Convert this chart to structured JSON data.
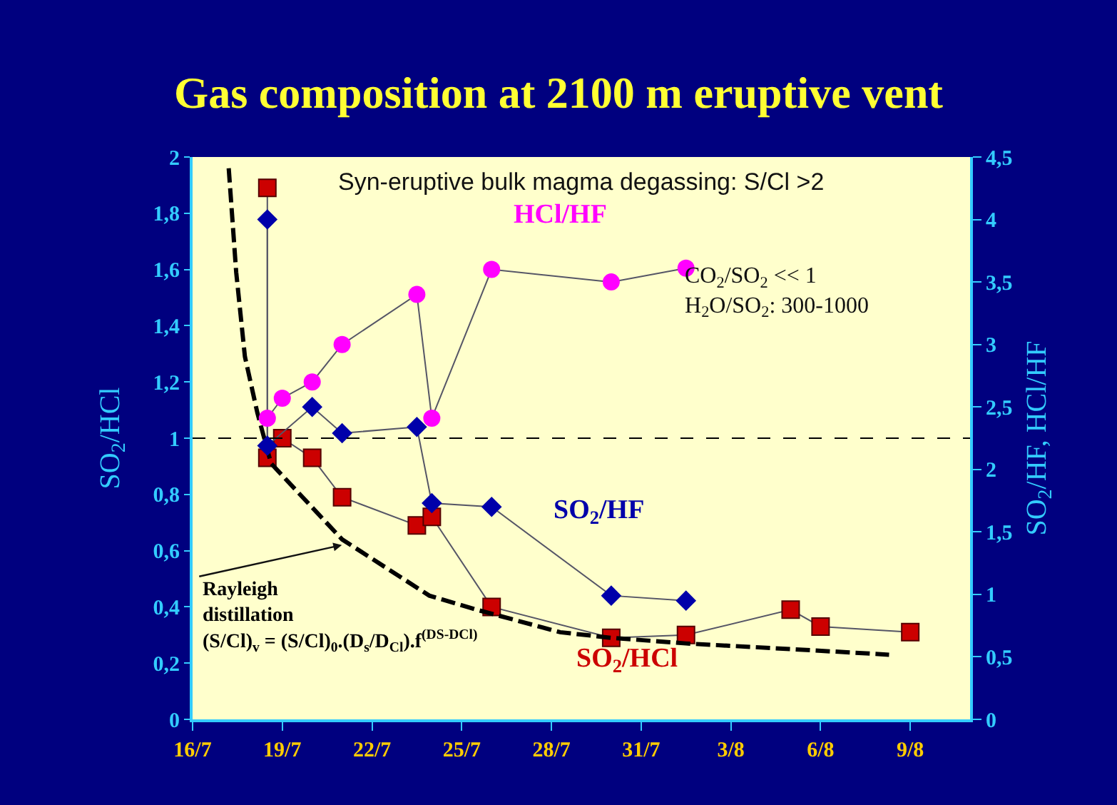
{
  "chart_data": {
    "type": "line",
    "title": "Gas composition at 2100 m eruptive vent",
    "ylabel": "SO$_{2}$/HCl",
    "y2label": "SO$_{2}$/HF, HCl/HF",
    "xlim": [
      "--07-16",
      "--08-11"
    ],
    "xticks": [
      {
        "value": "--07-16",
        "label": "16/7"
      },
      {
        "value": "--07-19",
        "label": "19/7"
      },
      {
        "value": "--07-22",
        "label": "22/7"
      },
      {
        "value": "--07-25",
        "label": "25/7"
      },
      {
        "value": "--07-28",
        "label": "28/7"
      },
      {
        "value": "--07-31",
        "label": "31/7"
      },
      {
        "value": "--08-03",
        "label": "3/8"
      },
      {
        "value": "--08-06",
        "label": "6/8"
      },
      {
        "value": "--08-09",
        "label": "9/8"
      }
    ],
    "ylim": [
      0,
      2
    ],
    "yticks": [
      0,
      {
        "value": 0.2,
        "label": "0,2"
      },
      {
        "value": 0.4,
        "label": "0,4"
      },
      {
        "value": 0.6,
        "label": "0,6"
      },
      {
        "value": 0.8,
        "label": "0,8"
      },
      1,
      {
        "value": 1.2,
        "label": "1,2"
      },
      {
        "value": 1.4,
        "label": "1,4"
      },
      {
        "value": 1.6,
        "label": "1,6"
      },
      {
        "value": 1.8,
        "label": "1,8"
      },
      2
    ],
    "y2lim": [
      0,
      4.5
    ],
    "y2ticks": [
      0,
      {
        "value": 0.5,
        "label": "0,5"
      },
      1,
      {
        "value": 1.5,
        "label": "1,5"
      },
      2,
      {
        "value": 2.5,
        "label": "2,5"
      },
      3,
      {
        "value": 3.5,
        "label": "3,5"
      },
      4,
      {
        "value": 4.5,
        "label": "4,5"
      }
    ],
    "grid": false,
    "series": [
      {
        "name": "SO$_{2}$/HCl",
        "color": "#cc0000",
        "marker": "square",
        "x": [
          "--07-18T12:00",
          "--07-18T12:00",
          "--07-19",
          "--07-20",
          "--07-21",
          "--07-23T12:00",
          "--07-24",
          "--07-26",
          "--07-30",
          "--08-01T12:00",
          "--08-05",
          "--08-06",
          "--08-09"
        ],
        "values": [
          1.89,
          0.93,
          1.0,
          0.93,
          0.79,
          0.69,
          0.72,
          0.4,
          0.29,
          0.3,
          0.39,
          0.33,
          0.31
        ]
      },
      {
        "name": "SO$_{2}$/HF",
        "color": "#0000aa",
        "marker": "diamond",
        "axis": "y2",
        "x": [
          "--07-18T12:00",
          "--07-18T12:00",
          "--07-20",
          "--07-21",
          "--07-23T12:00",
          "--07-24",
          "--07-26",
          "--07-30",
          "--08-01T12:00"
        ],
        "values": [
          4.0,
          2.19,
          2.5,
          2.29,
          2.34,
          1.73,
          1.7,
          0.99,
          0.95
        ]
      },
      {
        "name": "HCl/HF",
        "color": "#ff00ff",
        "marker": "circle",
        "axis": "y2",
        "x": [
          "--07-18T12:00",
          "--07-19",
          "--07-20",
          "--07-21",
          "--07-23T12:00",
          "--07-24",
          "--07-26",
          "--07-30",
          "--08-01T12:00"
        ],
        "values": [
          2.41,
          2.57,
          2.7,
          3.0,
          3.4,
          2.41,
          3.6,
          3.5,
          3.61
        ]
      },
      {
        "color": "#000000",
        "marker": "none",
        "line_style": "dashed",
        "x": [
          "--07-17T05:00",
          "--07-17T11:00",
          "--07-17T18:00",
          "--07-18T04:00",
          "--07-18T15:00",
          "--07-21",
          "--07-23T22:00",
          "--07-25T12:00",
          "--07-28T07:00",
          "--07-30",
          "--08-01T12:00",
          "--08-05",
          "--08-08T07:00"
        ],
        "values": [
          1.96,
          1.59,
          1.29,
          1.09,
          0.91,
          0.64,
          0.44,
          0.39,
          0.31,
          0.29,
          0.27,
          0.25,
          0.23
        ]
      }
    ],
    "ref_lines": [
      {
        "axis": "y",
        "value": 1,
        "line_style": "dashed",
        "color": "#000000"
      }
    ],
    "annotations": [
      "Syn-eruptive bulk magma degassing: S/Cl >2",
      "CO$_{2}$/SO$_{2}$ << 1\nH$_{2}$O/SO$_{2}$: 300-1000",
      "Rayleigh\ndistillation\n(S/Cl)$_{v}$ = (S/Cl)$_{0}$.(D$_{s}$/D$_{Cl}$).f$^{(DS-DCl)}$"
    ]
  }
}
